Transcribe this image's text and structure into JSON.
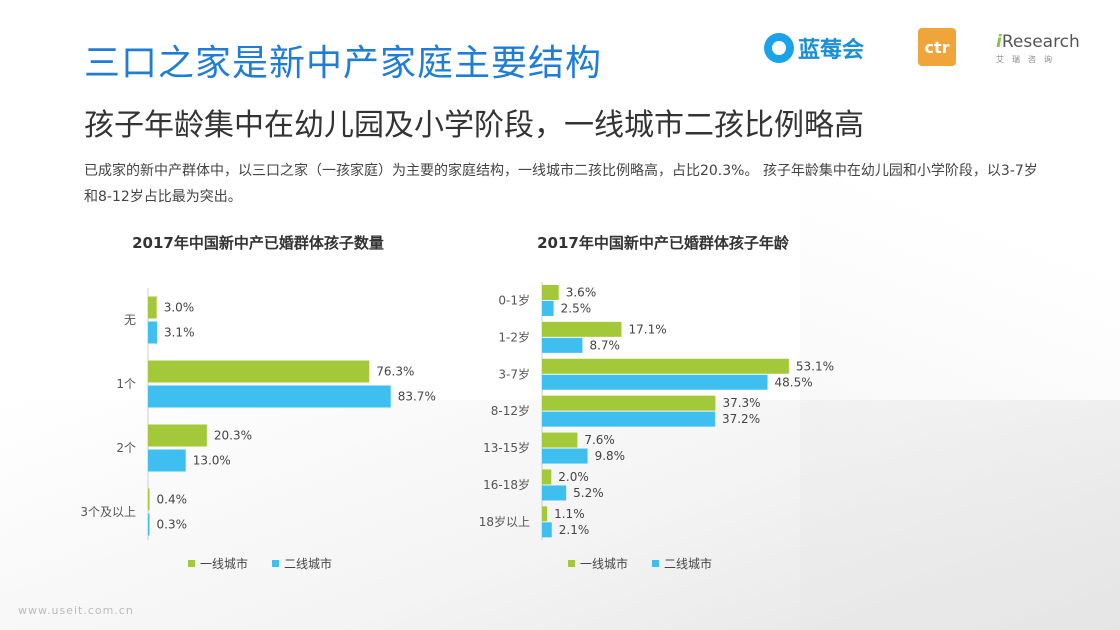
{
  "header": {
    "title": "三口之家是新中产家庭主要结构",
    "subtitle": "孩子年龄集中在幼儿园及小学阶段，一线城市二孩比例略高",
    "description": "已成家的新中产群体中，以三口之家（一孩家庭）为主要的家庭结构，一线城市二孩比例略高，占比20.3%。 孩子年龄集中在幼儿园和小学阶段，以3-7岁和8-12岁占比最为突出。"
  },
  "logos": {
    "lanmei": "蓝莓会",
    "ctr": "ctr",
    "iresearch_i": "i",
    "iresearch": "Research",
    "iresearch_cn": "艾瑞咨询"
  },
  "watermark": "www.useit.com.cn",
  "colors": {
    "tier1": "#a3c93a",
    "tier2": "#3fbfef",
    "title": "#1f7dd6"
  },
  "chart_data": [
    {
      "type": "bar",
      "orientation": "horizontal",
      "title": "2017年中国新中产已婚群体孩子数量",
      "categories": [
        "无",
        "1个",
        "2个",
        "3个及以上"
      ],
      "series": [
        {
          "name": "一线城市",
          "values": [
            3.0,
            76.3,
            20.3,
            0.4
          ],
          "labels": [
            "3.0%",
            "76.3%",
            "20.3%",
            "0.4%"
          ]
        },
        {
          "name": "二线城市",
          "values": [
            3.1,
            83.7,
            13.0,
            0.3
          ],
          "labels": [
            "3.1%",
            "83.7%",
            "13.0%",
            "0.3%"
          ]
        }
      ],
      "legend_position": "bottom",
      "grid": false
    },
    {
      "type": "bar",
      "orientation": "horizontal",
      "title": "2017年中国新中产已婚群体孩子年龄",
      "categories": [
        "0-1岁",
        "1-2岁",
        "3-7岁",
        "8-12岁",
        "13-15岁",
        "16-18岁",
        "18岁以上"
      ],
      "series": [
        {
          "name": "一线城市",
          "values": [
            3.6,
            17.1,
            53.1,
            37.3,
            7.6,
            2.0,
            1.1
          ],
          "labels": [
            "3.6%",
            "17.1%",
            "53.1%",
            "37.3%",
            "7.6%",
            "2.0%",
            "1.1%"
          ]
        },
        {
          "name": "二线城市",
          "values": [
            2.5,
            8.7,
            48.5,
            37.2,
            9.8,
            5.2,
            2.1
          ],
          "labels": [
            "2.5%",
            "8.7%",
            "48.5%",
            "37.2%",
            "9.8%",
            "5.2%",
            "2.1%"
          ]
        }
      ],
      "legend_position": "bottom",
      "grid": false
    }
  ]
}
